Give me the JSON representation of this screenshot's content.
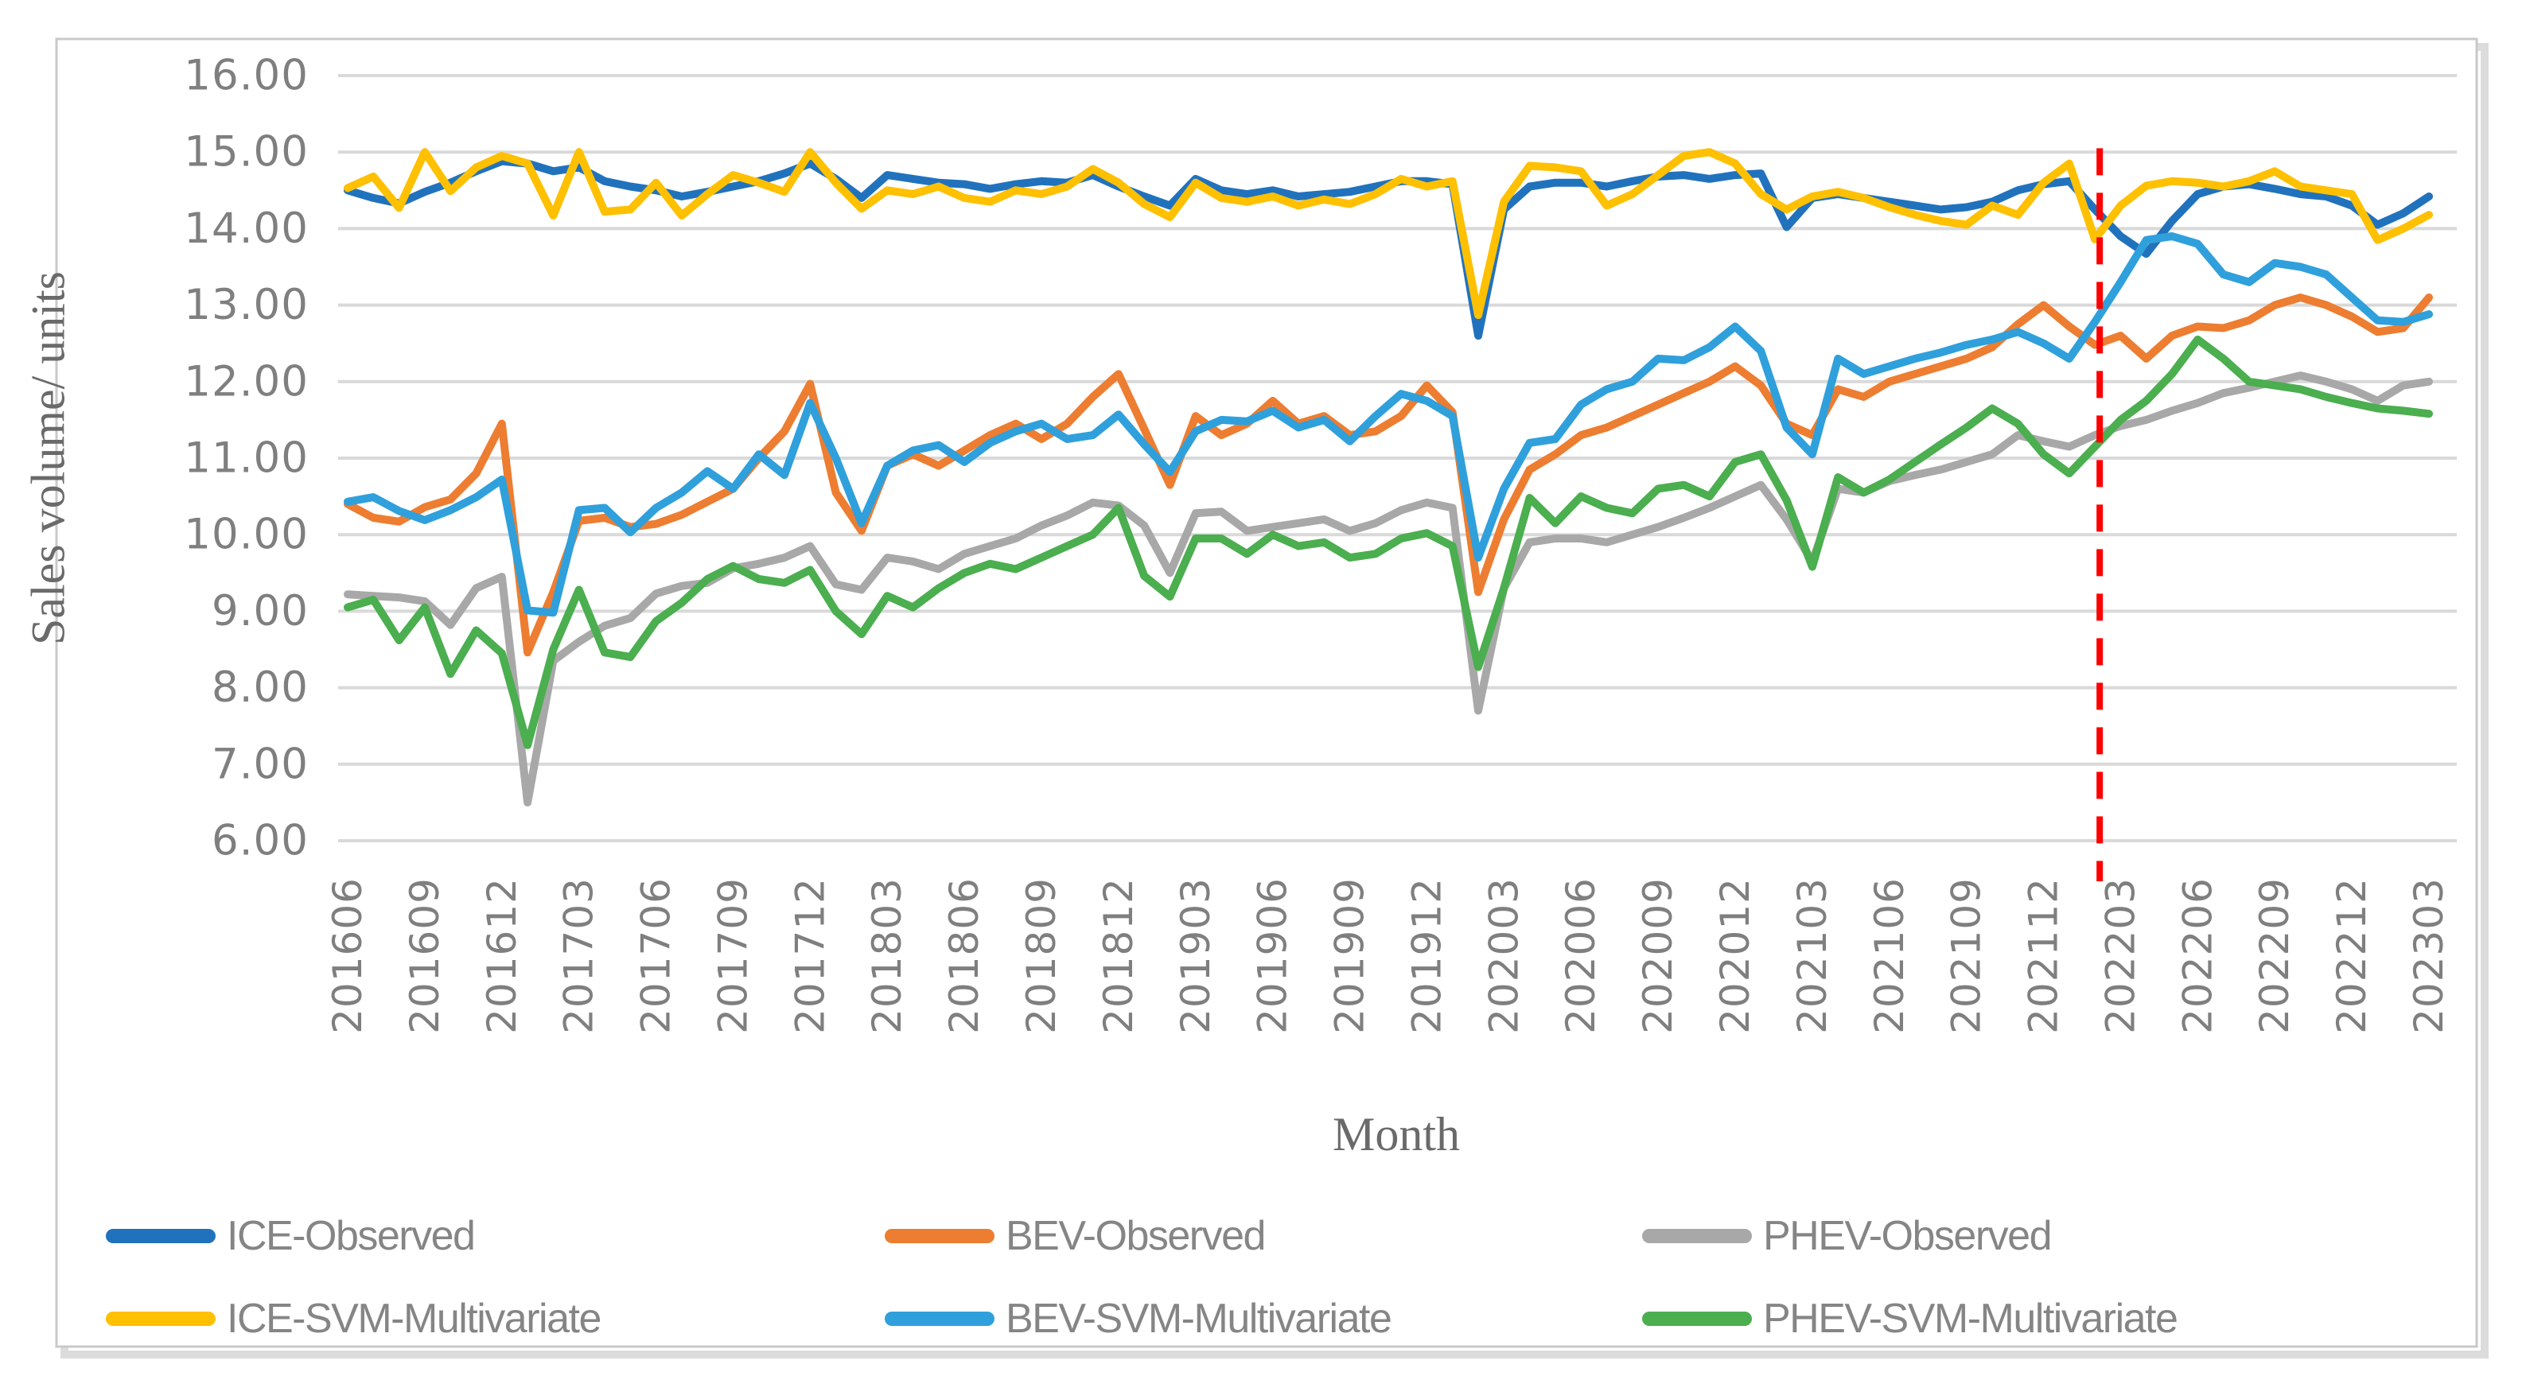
{
  "figure": {
    "background_color": "#ffffff",
    "border_color": "#c9c9c9",
    "shadow_color": "#dcdcdc",
    "y_axis": {
      "title": "Sales volume/ units",
      "tick_labels": [
        "16.00",
        "15.00",
        "14.00",
        "13.00",
        "12.00",
        "11.00",
        "10.00",
        "9.00",
        "8.00",
        "7.00",
        "6.00"
      ]
    },
    "x_axis": {
      "title": "Month",
      "tick_labels": [
        "201606",
        "201609",
        "201612",
        "201703",
        "201706",
        "201709",
        "201712",
        "201803",
        "201806",
        "201809",
        "201812",
        "201903",
        "201906",
        "201909",
        "201912",
        "202003",
        "202006",
        "202009",
        "202012",
        "202103",
        "202106",
        "202109",
        "202112",
        "202203",
        "202206",
        "202209",
        "202212",
        "202303"
      ]
    },
    "legend": {
      "position": "bottom",
      "items": [
        {
          "id": "ice-observed",
          "label": "ICE-Observed",
          "color": "#2172bd"
        },
        {
          "id": "bev-observed",
          "label": "BEV-Observed",
          "color": "#ed7d31"
        },
        {
          "id": "phev-observed",
          "label": "PHEV-Observed",
          "color": "#a8a8a8"
        },
        {
          "id": "ice-svm-multivariate",
          "label": "ICE-SVM-Multivariate",
          "color": "#ffc000"
        },
        {
          "id": "bev-svm-multivariate",
          "label": "BEV-SVM-Multivariate",
          "color": "#2fa0db"
        },
        {
          "id": "phev-svm-multivariate",
          "label": "PHEV-SVM-Multivariate",
          "color": "#4bae4f"
        }
      ]
    }
  },
  "chart_data": {
    "type": "line",
    "title": "",
    "xlabel": "Month",
    "ylabel": "Sales volume/ units",
    "ylim": [
      6,
      16
    ],
    "ytick_step": 1,
    "grid": "horizontal",
    "gridline_color": "#d9d9d9",
    "legend_position": "bottom",
    "x_tick_every": 3,
    "x_months": [
      "201606",
      "201607",
      "201608",
      "201609",
      "201610",
      "201611",
      "201612",
      "201701",
      "201702",
      "201703",
      "201704",
      "201705",
      "201706",
      "201707",
      "201708",
      "201709",
      "201710",
      "201711",
      "201712",
      "201801",
      "201802",
      "201803",
      "201804",
      "201805",
      "201806",
      "201807",
      "201808",
      "201809",
      "201810",
      "201811",
      "201812",
      "201901",
      "201902",
      "201903",
      "201904",
      "201905",
      "201906",
      "201907",
      "201908",
      "201909",
      "201910",
      "201911",
      "201912",
      "202001",
      "202002",
      "202003",
      "202004",
      "202005",
      "202006",
      "202007",
      "202008",
      "202009",
      "202010",
      "202011",
      "202012",
      "202101",
      "202102",
      "202103",
      "202104",
      "202105",
      "202106",
      "202107",
      "202108",
      "202109",
      "202110",
      "202111",
      "202112",
      "202201",
      "202202",
      "202203",
      "202204",
      "202205",
      "202206",
      "202207",
      "202208",
      "202209",
      "202210",
      "202211",
      "202212",
      "202301",
      "202302",
      "202303"
    ],
    "series": [
      {
        "id": "ice-observed",
        "name": "ICE-Observed",
        "color": "#2172bd",
        "values": [
          14.5,
          14.4,
          14.33,
          14.48,
          14.6,
          14.75,
          14.88,
          14.85,
          14.75,
          14.8,
          14.62,
          14.55,
          14.5,
          14.42,
          14.48,
          14.55,
          14.62,
          14.72,
          14.85,
          14.65,
          14.4,
          14.7,
          14.65,
          14.6,
          14.58,
          14.52,
          14.58,
          14.62,
          14.6,
          14.7,
          14.55,
          14.42,
          14.3,
          14.65,
          14.5,
          14.45,
          14.5,
          14.42,
          14.45,
          14.48,
          14.55,
          14.62,
          14.62,
          14.58,
          12.6,
          14.25,
          14.55,
          14.6,
          14.6,
          14.55,
          14.62,
          14.68,
          14.7,
          14.65,
          14.7,
          14.72,
          14.02,
          14.4,
          14.45,
          14.4,
          14.35,
          14.3,
          14.25,
          14.28,
          14.35,
          14.5,
          14.58,
          14.62,
          14.25,
          13.9,
          13.67,
          14.1,
          14.45,
          14.55,
          14.58,
          14.52,
          14.45,
          14.42,
          14.3,
          14.05,
          14.2,
          14.42
        ]
      },
      {
        "id": "bev-observed",
        "name": "BEV-Observed",
        "color": "#ed7d31",
        "values": [
          10.4,
          10.22,
          10.17,
          10.36,
          10.46,
          10.8,
          11.45,
          8.46,
          9.25,
          10.18,
          10.22,
          10.1,
          10.14,
          10.26,
          10.43,
          10.6,
          11.0,
          11.35,
          11.97,
          10.55,
          10.05,
          10.9,
          11.05,
          10.9,
          11.1,
          11.3,
          11.45,
          11.25,
          11.45,
          11.8,
          12.1,
          11.38,
          10.65,
          11.55,
          11.3,
          11.45,
          11.75,
          11.45,
          11.55,
          11.3,
          11.35,
          11.55,
          11.95,
          11.6,
          9.25,
          10.2,
          10.85,
          11.05,
          11.3,
          11.4,
          11.55,
          11.7,
          11.85,
          12.0,
          12.2,
          11.95,
          11.45,
          11.3,
          11.9,
          11.8,
          12.0,
          12.1,
          12.2,
          12.3,
          12.45,
          12.75,
          13.0,
          12.72,
          12.48,
          12.6,
          12.3,
          12.6,
          12.72,
          12.7,
          12.8,
          13.0,
          13.1,
          13.0,
          12.85,
          12.65,
          12.7,
          13.1
        ]
      },
      {
        "id": "phev-observed",
        "name": "PHEV-Observed",
        "color": "#a8a8a8",
        "values": [
          9.22,
          9.2,
          9.18,
          9.13,
          8.82,
          9.3,
          9.45,
          6.5,
          8.35,
          8.6,
          8.81,
          8.91,
          9.23,
          9.33,
          9.37,
          9.56,
          9.62,
          9.7,
          9.85,
          9.35,
          9.28,
          9.7,
          9.65,
          9.55,
          9.75,
          9.85,
          9.95,
          10.12,
          10.25,
          10.42,
          10.38,
          10.12,
          9.5,
          10.28,
          10.3,
          10.05,
          10.1,
          10.15,
          10.2,
          10.05,
          10.15,
          10.32,
          10.42,
          10.35,
          7.7,
          9.3,
          9.9,
          9.95,
          9.95,
          9.9,
          10.0,
          10.1,
          10.22,
          10.35,
          10.5,
          10.65,
          10.2,
          9.65,
          10.6,
          10.55,
          10.7,
          10.78,
          10.85,
          10.95,
          11.05,
          11.3,
          11.22,
          11.15,
          11.3,
          11.42,
          11.5,
          11.62,
          11.72,
          11.85,
          11.92,
          12.0,
          12.08,
          12.0,
          11.9,
          11.75,
          11.95,
          12.0
        ]
      },
      {
        "id": "ice-svm-multivariate",
        "name": "ICE-SVM-Multivariate",
        "color": "#ffc000",
        "values": [
          14.53,
          14.68,
          14.27,
          15.0,
          14.49,
          14.8,
          14.95,
          14.85,
          14.17,
          15.0,
          14.22,
          14.25,
          14.6,
          14.17,
          14.45,
          14.7,
          14.6,
          14.48,
          15.0,
          14.6,
          14.26,
          14.5,
          14.45,
          14.55,
          14.4,
          14.35,
          14.5,
          14.45,
          14.55,
          14.78,
          14.6,
          14.32,
          14.15,
          14.6,
          14.4,
          14.35,
          14.42,
          14.3,
          14.38,
          14.32,
          14.45,
          14.65,
          14.55,
          14.62,
          12.87,
          14.35,
          14.82,
          14.8,
          14.75,
          14.3,
          14.45,
          14.7,
          14.95,
          15.0,
          14.85,
          14.45,
          14.25,
          14.42,
          14.48,
          14.4,
          14.28,
          14.18,
          14.1,
          14.05,
          14.3,
          14.18,
          14.6,
          14.85,
          13.86,
          14.3,
          14.56,
          14.62,
          14.6,
          14.55,
          14.62,
          14.75,
          14.55,
          14.5,
          14.45,
          13.85,
          14.0,
          14.18
        ]
      },
      {
        "id": "bev-svm-multivariate",
        "name": "BEV-SVM-Multivariate",
        "color": "#2fa0db",
        "values": [
          10.43,
          10.49,
          10.31,
          10.19,
          10.32,
          10.49,
          10.72,
          9.01,
          8.98,
          10.32,
          10.35,
          10.03,
          10.35,
          10.55,
          10.83,
          10.6,
          11.05,
          10.78,
          11.72,
          11.0,
          10.15,
          10.9,
          11.1,
          11.17,
          10.95,
          11.2,
          11.35,
          11.45,
          11.25,
          11.3,
          11.57,
          11.18,
          10.82,
          11.35,
          11.5,
          11.48,
          11.62,
          11.4,
          11.5,
          11.22,
          11.55,
          11.84,
          11.75,
          11.55,
          9.7,
          10.6,
          11.2,
          11.25,
          11.7,
          11.9,
          12.0,
          12.3,
          12.28,
          12.45,
          12.72,
          12.4,
          11.4,
          11.05,
          12.3,
          12.1,
          12.2,
          12.3,
          12.38,
          12.48,
          12.55,
          12.65,
          12.5,
          12.3,
          12.78,
          13.3,
          13.85,
          13.9,
          13.8,
          13.4,
          13.3,
          13.55,
          13.5,
          13.4,
          13.1,
          12.8,
          12.78,
          12.88
        ]
      },
      {
        "id": "phev-svm-multivariate",
        "name": "PHEV-SVM-Multivariate",
        "color": "#4bae4f",
        "values": [
          9.05,
          9.15,
          8.62,
          9.05,
          8.18,
          8.75,
          8.45,
          7.25,
          8.5,
          9.28,
          8.46,
          8.4,
          8.87,
          9.11,
          9.42,
          9.59,
          9.42,
          9.37,
          9.54,
          9.0,
          8.7,
          9.2,
          9.05,
          9.3,
          9.5,
          9.62,
          9.55,
          9.7,
          9.85,
          10.0,
          10.35,
          9.46,
          9.19,
          9.95,
          9.95,
          9.75,
          10.0,
          9.85,
          9.9,
          9.7,
          9.75,
          9.95,
          10.02,
          9.85,
          8.27,
          9.3,
          10.48,
          10.15,
          10.5,
          10.35,
          10.28,
          10.6,
          10.65,
          10.5,
          10.95,
          11.05,
          10.45,
          9.58,
          10.75,
          10.55,
          10.72,
          10.95,
          11.18,
          11.4,
          11.65,
          11.45,
          11.05,
          10.8,
          11.15,
          11.5,
          11.75,
          12.1,
          12.55,
          12.3,
          12.0,
          11.95,
          11.9,
          11.8,
          11.72,
          11.65,
          11.62,
          11.58
        ]
      }
    ],
    "vline": {
      "x_month": "202202",
      "color": "#ff0000",
      "style": "dashed",
      "meaning": "train-forecast split"
    }
  }
}
